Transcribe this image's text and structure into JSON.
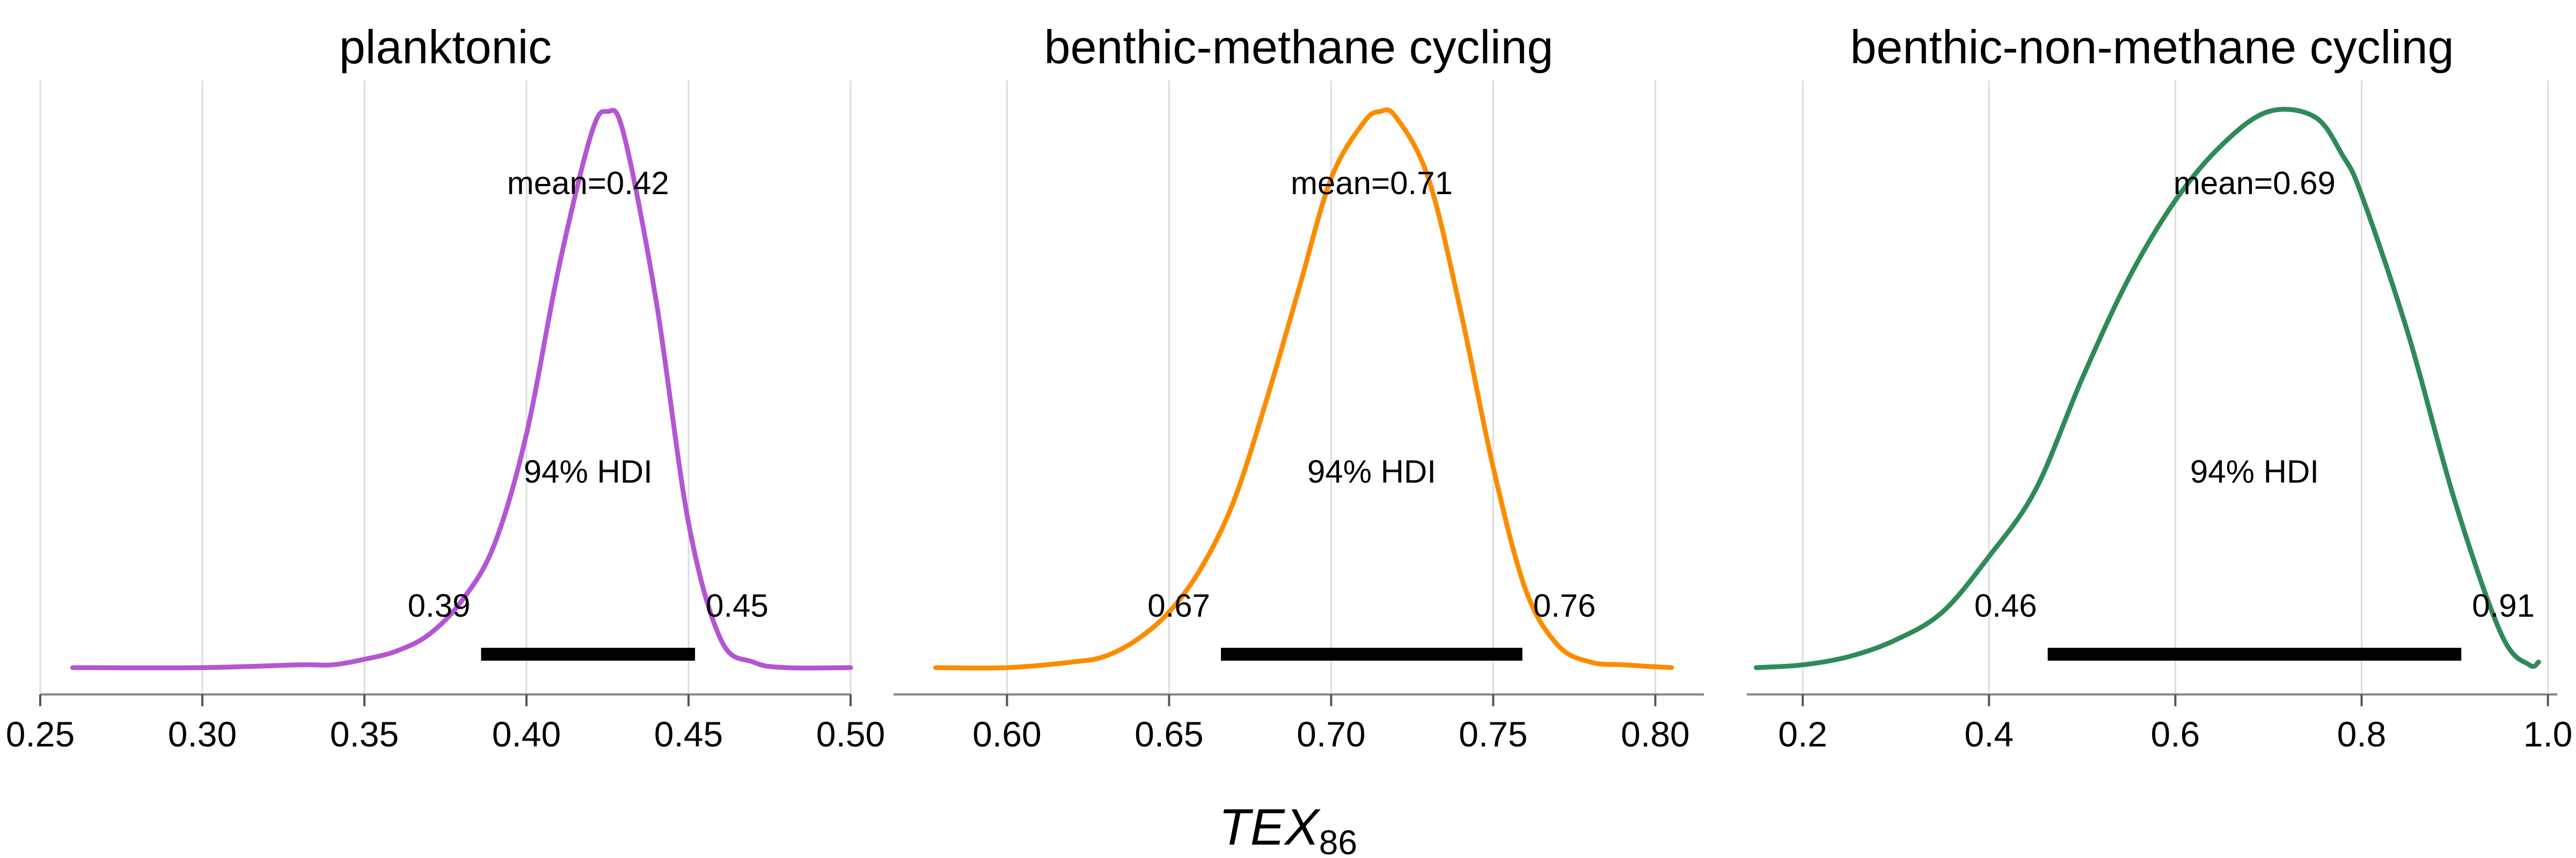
{
  "x_axis_label": "TEX",
  "x_axis_label_subscript": "86",
  "colors": {
    "planktonic": "#b455d4",
    "methane": "#fb8c00",
    "non_methane": "#2e8b57"
  },
  "chart_data": [
    {
      "type": "line",
      "title": "planktonic",
      "color": "#b455d4",
      "xlim": [
        0.25,
        0.5
      ],
      "xticks": [
        0.25,
        0.3,
        0.35,
        0.4,
        0.45,
        0.5
      ],
      "xtick_labels": [
        "0.25",
        "0.30",
        "0.35",
        "0.40",
        "0.45",
        "0.50"
      ],
      "density": {
        "x": [
          0.26,
          0.3,
          0.33,
          0.34,
          0.35,
          0.36,
          0.37,
          0.38,
          0.39,
          0.4,
          0.41,
          0.42,
          0.425,
          0.43,
          0.44,
          0.45,
          0.46,
          0.47,
          0.48,
          0.5
        ],
        "y": [
          0.0,
          0.0,
          0.005,
          0.005,
          0.015,
          0.03,
          0.06,
          0.12,
          0.22,
          0.42,
          0.72,
          0.96,
          1.0,
          0.96,
          0.66,
          0.26,
          0.05,
          0.01,
          0.0,
          0.0
        ]
      },
      "mean_label": "mean=0.42",
      "hdi_label": "94% HDI",
      "hdi": [
        0.386,
        0.452
      ],
      "hdi_low_label": "0.39",
      "hdi_high_label": "0.45"
    },
    {
      "type": "line",
      "title": "benthic-methane cycling",
      "color": "#fb8c00",
      "xlim": [
        0.565,
        0.815
      ],
      "xticks": [
        0.6,
        0.65,
        0.7,
        0.75,
        0.8
      ],
      "xtick_labels": [
        "0.60",
        "0.65",
        "0.70",
        "0.75",
        "0.80"
      ],
      "density": {
        "x": [
          0.578,
          0.6,
          0.62,
          0.63,
          0.64,
          0.65,
          0.66,
          0.67,
          0.68,
          0.69,
          0.7,
          0.71,
          0.715,
          0.72,
          0.73,
          0.74,
          0.75,
          0.76,
          0.77,
          0.78,
          0.79,
          0.805
        ],
        "y": [
          0.0,
          0.0,
          0.01,
          0.02,
          0.05,
          0.1,
          0.18,
          0.3,
          0.48,
          0.68,
          0.88,
          0.98,
          1.0,
          0.99,
          0.88,
          0.64,
          0.36,
          0.14,
          0.04,
          0.01,
          0.005,
          0.0
        ]
      },
      "mean_label": "mean=0.71",
      "hdi_label": "94% HDI",
      "hdi": [
        0.666,
        0.759
      ],
      "hdi_low_label": "0.67",
      "hdi_high_label": "0.76"
    },
    {
      "type": "line",
      "title": "benthic-non-methane cycling",
      "color": "#2e8b57",
      "xlim": [
        0.14,
        1.01
      ],
      "xticks": [
        0.2,
        0.4,
        0.6,
        0.8,
        1.0
      ],
      "xtick_labels": [
        "0.2",
        "0.4",
        "0.6",
        "0.8",
        "1.0"
      ],
      "density": {
        "x": [
          0.15,
          0.2,
          0.25,
          0.3,
          0.35,
          0.4,
          0.45,
          0.5,
          0.55,
          0.6,
          0.65,
          0.7,
          0.75,
          0.78,
          0.8,
          0.85,
          0.9,
          0.95,
          0.98,
          0.99
        ],
        "y": [
          0.0,
          0.005,
          0.02,
          0.05,
          0.1,
          0.2,
          0.32,
          0.52,
          0.7,
          0.84,
          0.94,
          1.0,
          0.99,
          0.92,
          0.85,
          0.6,
          0.3,
          0.06,
          0.005,
          0.01
        ]
      },
      "mean_label": "mean=0.69",
      "hdi_label": "94% HDI",
      "hdi": [
        0.463,
        0.907
      ],
      "hdi_low_label": "0.46",
      "hdi_high_label": "0.91"
    }
  ]
}
